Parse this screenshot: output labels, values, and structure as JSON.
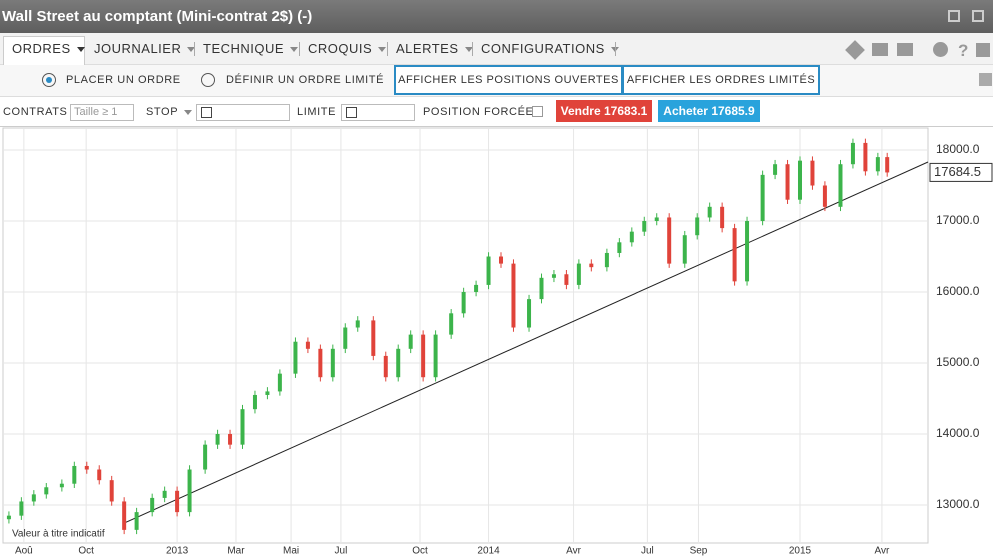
{
  "window": {
    "title": "Wall Street au comptant (Mini-contrat 2$) (-)"
  },
  "menu": [
    "ORDRES",
    "JOURNALIER",
    "TECHNIQUE",
    "CROQUIS",
    "ALERTES",
    "CONFIGURATIONS"
  ],
  "order_mode": {
    "options": [
      "PLACER UN ORDRE",
      "DÉFINIR UN ORDRE LIMITÉ"
    ],
    "buttons": [
      "AFFICHER LES POSITIONS OUVERTES",
      "AFFICHER LES ORDRES LIMITÉS"
    ]
  },
  "order_bar": {
    "contracts": "CONTRATS",
    "size_placeholder": "Taille ≥ 1",
    "stop": "STOP",
    "limit": "LIMITE",
    "forced": "POSITION FORCÉE",
    "sell": "Vendre 17683.1",
    "buy": "Acheter 17685.9"
  },
  "chart_data": {
    "type": "candlestick",
    "up_color": "#3cb44b",
    "down_color": "#e0433a",
    "grid": true,
    "note": "Valeur à titre indicatif",
    "last_value": 17684.5,
    "xlim": [
      2012.441,
      2015.411
    ],
    "xticks": [
      {
        "value": 2012.508,
        "label": "Aoû"
      },
      {
        "value": 2012.708,
        "label": "Oct"
      },
      {
        "value": 2013,
        "label": "2013"
      },
      {
        "value": 2013.189,
        "label": "Mar"
      },
      {
        "value": 2013.366,
        "label": "Mai"
      },
      {
        "value": 2013.526,
        "label": "Jul"
      },
      {
        "value": 2013.78,
        "label": "Oct"
      },
      {
        "value": 2014,
        "label": "2014"
      },
      {
        "value": 2014.273,
        "label": "Avr"
      },
      {
        "value": 2014.51,
        "label": "Jul"
      },
      {
        "value": 2014.674,
        "label": "Sep"
      },
      {
        "value": 2015,
        "label": "2015"
      },
      {
        "value": 2015.263,
        "label": "Avr"
      }
    ],
    "ylim": [
      12465,
      18310
    ],
    "yticks": [
      {
        "value": 13000,
        "label": "13000.0"
      },
      {
        "value": 14000,
        "label": "14000.0"
      },
      {
        "value": 15000,
        "label": "15000.0"
      },
      {
        "value": 16000,
        "label": "16000.0"
      },
      {
        "value": 17000,
        "label": "17000.0"
      },
      {
        "value": 18000,
        "label": "18000.0"
      }
    ],
    "trendline": {
      "x": [
        2012.83,
        2015.411
      ],
      "y": [
        12746,
        17831
      ]
    },
    "x": [
      2012.46,
      2012.5,
      2012.54,
      2012.58,
      2012.63,
      2012.67,
      2012.71,
      2012.75,
      2012.79,
      2012.83,
      2012.87,
      2012.92,
      2012.96,
      2013.0,
      2013.04,
      2013.09,
      2013.13,
      2013.17,
      2013.21,
      2013.25,
      2013.29,
      2013.33,
      2013.38,
      2013.42,
      2013.46,
      2013.5,
      2013.54,
      2013.58,
      2013.63,
      2013.67,
      2013.71,
      2013.75,
      2013.79,
      2013.83,
      2013.88,
      2013.92,
      2013.96,
      2014.0,
      2014.04,
      2014.08,
      2014.13,
      2014.17,
      2014.21,
      2014.25,
      2014.29,
      2014.33,
      2014.38,
      2014.42,
      2014.46,
      2014.5,
      2014.54,
      2014.58,
      2014.63,
      2014.67,
      2014.71,
      2014.75,
      2014.79,
      2014.83,
      2014.88,
      2014.92,
      2014.96,
      2015.0,
      2015.04,
      2015.08,
      2015.13,
      2015.17,
      2015.21,
      2015.25,
      2015.28
    ],
    "open": [
      12800,
      12850,
      13050,
      13150,
      13250,
      13300,
      13550,
      13500,
      13350,
      13050,
      12650,
      12900,
      13100,
      13200,
      12900,
      13500,
      13850,
      14000,
      13850,
      14350,
      14550,
      14600,
      14850,
      15300,
      15200,
      14800,
      15200,
      15500,
      15600,
      15100,
      14800,
      15200,
      15400,
      14800,
      15400,
      15700,
      16000,
      16100,
      16500,
      16400,
      15500,
      15900,
      16200,
      16250,
      16100,
      16400,
      16350,
      16550,
      16700,
      16850,
      17000,
      17050,
      16400,
      16800,
      17050,
      17200,
      16900,
      16150,
      17000,
      17650,
      17800,
      17300,
      17850,
      17500,
      17200,
      17800,
      18100,
      17700,
      17900
    ],
    "high": [
      12910,
      13110,
      13210,
      13310,
      13360,
      13610,
      13610,
      13560,
      13410,
      13110,
      12960,
      13160,
      13260,
      13260,
      13560,
      13910,
      14060,
      14060,
      14410,
      14610,
      14660,
      14910,
      15360,
      15360,
      15260,
      15260,
      15560,
      15660,
      15660,
      15160,
      15260,
      15460,
      15460,
      15460,
      15760,
      16060,
      16160,
      16560,
      16560,
      16460,
      15960,
      16260,
      16310,
      16310,
      16460,
      16460,
      16610,
      16760,
      16910,
      17060,
      17110,
      17110,
      16860,
      17110,
      17260,
      17260,
      16960,
      17060,
      17710,
      17860,
      17860,
      17910,
      17910,
      17560,
      17860,
      18160,
      18160,
      17960,
      17960
    ],
    "low": [
      12740,
      12790,
      12990,
      13090,
      13190,
      13240,
      13440,
      13290,
      12990,
      12590,
      12590,
      12840,
      13040,
      12840,
      12840,
      13440,
      13790,
      13790,
      13790,
      14290,
      14490,
      14540,
      14790,
      15140,
      14740,
      14740,
      15140,
      15440,
      15040,
      14740,
      14740,
      15140,
      14740,
      14740,
      15340,
      15640,
      15940,
      16040,
      16340,
      15440,
      15440,
      15840,
      16140,
      16040,
      16040,
      16290,
      16290,
      16490,
      16640,
      16790,
      16940,
      16340,
      16340,
      16740,
      16990,
      16840,
      16090,
      16090,
      16940,
      17590,
      17240,
      17240,
      17440,
      17140,
      17140,
      17740,
      17640,
      17640,
      17624
    ],
    "close": [
      12850,
      13050,
      13150,
      13250,
      13300,
      13550,
      13500,
      13350,
      13050,
      12650,
      12900,
      13100,
      13200,
      12900,
      13500,
      13850,
      14000,
      13850,
      14350,
      14550,
      14600,
      14850,
      15300,
      15200,
      14800,
      15200,
      15500,
      15600,
      15100,
      14800,
      15200,
      15400,
      14800,
      15400,
      15700,
      16000,
      16100,
      16500,
      16400,
      15500,
      15900,
      16200,
      16250,
      16100,
      16400,
      16350,
      16550,
      16700,
      16850,
      17000,
      17050,
      16400,
      16800,
      17050,
      17200,
      16900,
      16150,
      17000,
      17650,
      17800,
      17300,
      17850,
      17500,
      17200,
      17800,
      18100,
      17700,
      17900,
      17684
    ]
  }
}
